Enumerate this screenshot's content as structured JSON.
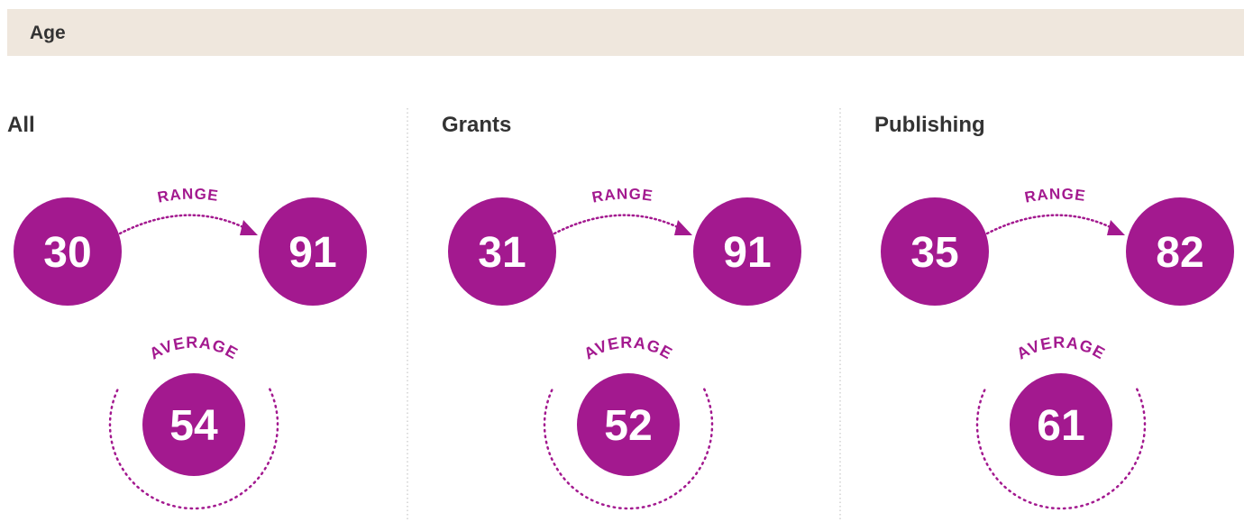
{
  "header": {
    "title": "Age"
  },
  "panels": [
    {
      "title": "All",
      "range_label": "RANGE",
      "min": 30,
      "max": 91,
      "average_label": "AVERAGE",
      "average": 54
    },
    {
      "title": "Grants",
      "range_label": "RANGE",
      "min": 31,
      "max": 91,
      "average_label": "AVERAGE",
      "average": 52
    },
    {
      "title": "Publishing",
      "range_label": "RANGE",
      "min": 35,
      "max": 82,
      "average_label": "AVERAGE",
      "average": 61
    }
  ]
}
